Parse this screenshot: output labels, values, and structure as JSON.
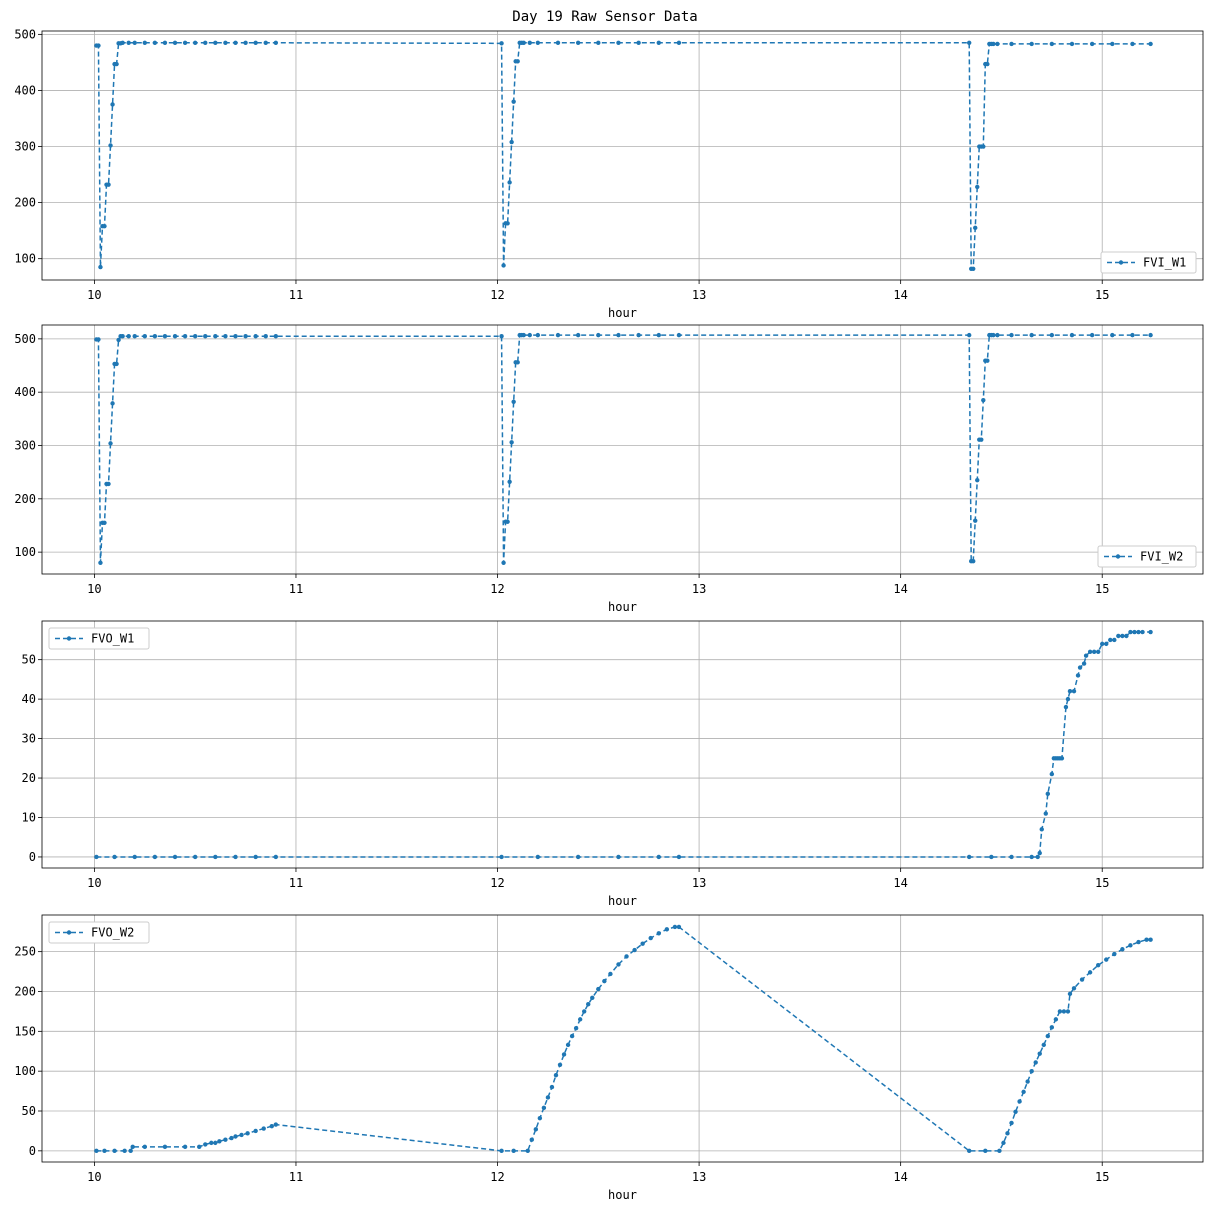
{
  "figure": {
    "title": "Day 19 Raw Sensor Data"
  },
  "colors": {
    "series": "#1f77b4",
    "grid": "#b0b0b0",
    "axes": "#000000",
    "legend_border": "#cccccc"
  },
  "chart_data": [
    {
      "type": "line",
      "xlabel": "hour",
      "ylabel": "",
      "xlim": [
        9.74,
        15.5
      ],
      "ylim": [
        62,
        506
      ],
      "xticks": [
        10,
        11,
        12,
        13,
        14,
        15
      ],
      "yticks": [
        100,
        200,
        300,
        400,
        500
      ],
      "grid": true,
      "legend_loc": "lower right",
      "line_style": "dashed",
      "marker": "dot",
      "series": [
        {
          "name": "FVI_W1",
          "x": [
            10.01,
            10.02,
            10.03,
            10.04,
            10.05,
            10.06,
            10.07,
            10.08,
            10.09,
            10.1,
            10.11,
            10.12,
            10.13,
            10.14,
            10.17,
            10.2,
            10.25,
            10.3,
            10.35,
            10.4,
            10.45,
            10.5,
            10.55,
            10.6,
            10.65,
            10.7,
            10.75,
            10.8,
            10.85,
            10.9,
            12.02,
            12.03,
            12.04,
            12.05,
            12.06,
            12.07,
            12.08,
            12.09,
            12.1,
            12.11,
            12.12,
            12.13,
            12.16,
            12.2,
            12.3,
            12.4,
            12.5,
            12.6,
            12.7,
            12.8,
            12.9,
            14.34,
            14.35,
            14.36,
            14.37,
            14.38,
            14.39,
            14.4,
            14.41,
            14.42,
            14.43,
            14.44,
            14.45,
            14.46,
            14.48,
            14.55,
            14.65,
            14.75,
            14.85,
            14.95,
            15.05,
            15.15,
            15.24
          ],
          "y": [
            480,
            480,
            85,
            158,
            158,
            232,
            232,
            302,
            375,
            447,
            447,
            484,
            484,
            485,
            485,
            485,
            485,
            485,
            485,
            485,
            485,
            485,
            485,
            485,
            485,
            485,
            485,
            485,
            485,
            485,
            484,
            88,
            163,
            163,
            236,
            308,
            380,
            452,
            452,
            485,
            485,
            485,
            485,
            485,
            485,
            485,
            485,
            485,
            485,
            485,
            485,
            485,
            82,
            82,
            155,
            228,
            300,
            300,
            300,
            447,
            447,
            483,
            483,
            483,
            483,
            483,
            483,
            483,
            483,
            483,
            483,
            483,
            483
          ]
        }
      ]
    },
    {
      "type": "line",
      "xlabel": "hour",
      "ylabel": "",
      "xlim": [
        9.74,
        15.5
      ],
      "ylim": [
        59,
        526
      ],
      "xticks": [
        10,
        11,
        12,
        13,
        14,
        15
      ],
      "yticks": [
        100,
        200,
        300,
        400,
        500
      ],
      "grid": true,
      "legend_loc": "lower right",
      "line_style": "dashed",
      "marker": "dot",
      "series": [
        {
          "name": "FVI_W2",
          "x": [
            10.01,
            10.02,
            10.03,
            10.04,
            10.05,
            10.06,
            10.07,
            10.08,
            10.09,
            10.1,
            10.11,
            10.12,
            10.13,
            10.14,
            10.17,
            10.2,
            10.25,
            10.3,
            10.35,
            10.4,
            10.45,
            10.5,
            10.55,
            10.6,
            10.65,
            10.7,
            10.75,
            10.8,
            10.85,
            10.9,
            12.02,
            12.03,
            12.04,
            12.05,
            12.06,
            12.07,
            12.08,
            12.09,
            12.1,
            12.11,
            12.12,
            12.13,
            12.16,
            12.2,
            12.3,
            12.4,
            12.5,
            12.6,
            12.7,
            12.8,
            12.9,
            14.34,
            14.35,
            14.36,
            14.37,
            14.38,
            14.39,
            14.4,
            14.41,
            14.42,
            14.43,
            14.44,
            14.45,
            14.46,
            14.48,
            14.55,
            14.65,
            14.75,
            14.85,
            14.95,
            15.05,
            15.15,
            15.24
          ],
          "y": [
            499,
            499,
            80,
            155,
            155,
            228,
            228,
            304,
            379,
            453,
            453,
            498,
            505,
            505,
            505,
            505,
            505,
            505,
            505,
            505,
            505,
            505,
            505,
            505,
            505,
            505,
            505,
            505,
            505,
            505,
            505,
            80,
            157,
            157,
            232,
            306,
            382,
            456,
            456,
            507,
            507,
            507,
            507,
            507,
            507,
            507,
            507,
            507,
            507,
            507,
            507,
            507,
            83,
            83,
            159,
            235,
            311,
            311,
            385,
            459,
            459,
            507,
            507,
            507,
            507,
            507,
            507,
            507,
            507,
            507,
            507,
            507,
            507
          ]
        }
      ]
    },
    {
      "type": "line",
      "xlabel": "hour",
      "ylabel": "",
      "xlim": [
        9.74,
        15.5
      ],
      "ylim": [
        -2.8,
        59.8
      ],
      "xticks": [
        10,
        11,
        12,
        13,
        14,
        15
      ],
      "yticks": [
        0,
        10,
        20,
        30,
        40,
        50
      ],
      "grid": true,
      "legend_loc": "upper left",
      "line_style": "dashed",
      "marker": "dot",
      "series": [
        {
          "name": "FVO_W1",
          "x": [
            10.01,
            10.1,
            10.2,
            10.3,
            10.4,
            10.5,
            10.6,
            10.7,
            10.8,
            10.9,
            12.02,
            12.2,
            12.4,
            12.6,
            12.8,
            12.9,
            14.34,
            14.45,
            14.55,
            14.65,
            14.68,
            14.69,
            14.7,
            14.72,
            14.73,
            14.75,
            14.76,
            14.77,
            14.78,
            14.79,
            14.8,
            14.82,
            14.83,
            14.84,
            14.86,
            14.88,
            14.89,
            14.91,
            14.92,
            14.94,
            14.96,
            14.98,
            15.0,
            15.02,
            15.04,
            15.06,
            15.08,
            15.1,
            15.12,
            15.14,
            15.16,
            15.18,
            15.2,
            15.24
          ],
          "y": [
            0,
            0,
            0,
            0,
            0,
            0,
            0,
            0,
            0,
            0,
            0,
            0,
            0,
            0,
            0,
            0,
            0,
            0,
            0,
            0,
            0,
            1,
            7,
            11,
            16,
            21,
            25,
            25,
            25,
            25,
            25,
            38,
            40,
            42,
            42,
            46,
            48,
            49,
            51,
            52,
            52,
            52,
            54,
            54,
            55,
            55,
            56,
            56,
            56,
            57,
            57,
            57,
            57,
            57
          ]
        }
      ]
    },
    {
      "type": "line",
      "xlabel": "hour",
      "ylabel": "",
      "xlim": [
        9.74,
        15.5
      ],
      "ylim": [
        -14,
        296
      ],
      "xticks": [
        10,
        11,
        12,
        13,
        14,
        15
      ],
      "yticks": [
        0,
        50,
        100,
        150,
        200,
        250
      ],
      "grid": true,
      "legend_loc": "upper left",
      "line_style": "dashed",
      "marker": "dot",
      "series": [
        {
          "name": "FVO_W2",
          "x": [
            10.01,
            10.05,
            10.1,
            10.15,
            10.18,
            10.19,
            10.25,
            10.35,
            10.45,
            10.52,
            10.55,
            10.58,
            10.6,
            10.62,
            10.65,
            10.68,
            10.7,
            10.73,
            10.76,
            10.8,
            10.84,
            10.88,
            10.9,
            12.02,
            12.08,
            12.15,
            12.17,
            12.19,
            12.21,
            12.23,
            12.25,
            12.27,
            12.29,
            12.31,
            12.33,
            12.35,
            12.37,
            12.39,
            12.41,
            12.43,
            12.45,
            12.47,
            12.5,
            12.53,
            12.56,
            12.6,
            12.64,
            12.68,
            12.72,
            12.76,
            12.8,
            12.84,
            12.88,
            12.9,
            14.34,
            14.42,
            14.49,
            14.51,
            14.53,
            14.55,
            14.57,
            14.59,
            14.61,
            14.63,
            14.65,
            14.67,
            14.69,
            14.71,
            14.73,
            14.75,
            14.77,
            14.79,
            14.81,
            14.83,
            14.84,
            14.86,
            14.9,
            14.94,
            14.98,
            15.02,
            15.06,
            15.1,
            15.14,
            15.18,
            15.22,
            15.24
          ],
          "y": [
            0,
            0,
            0,
            0,
            0,
            5,
            5,
            5,
            5,
            5,
            8,
            10,
            10,
            12,
            14,
            16,
            18,
            20,
            22,
            25,
            28,
            31,
            33,
            0,
            0,
            0,
            14,
            27,
            41,
            54,
            67,
            80,
            95,
            108,
            121,
            133,
            144,
            154,
            165,
            175,
            184,
            192,
            203,
            213,
            222,
            234,
            244,
            252,
            260,
            267,
            273,
            278,
            281,
            281,
            0,
            0,
            0,
            10,
            22,
            35,
            49,
            62,
            74,
            87,
            100,
            111,
            122,
            133,
            144,
            155,
            165,
            175,
            175,
            175,
            197,
            204,
            215,
            224,
            233,
            240,
            247,
            253,
            258,
            262,
            265,
            265
          ]
        }
      ]
    }
  ]
}
